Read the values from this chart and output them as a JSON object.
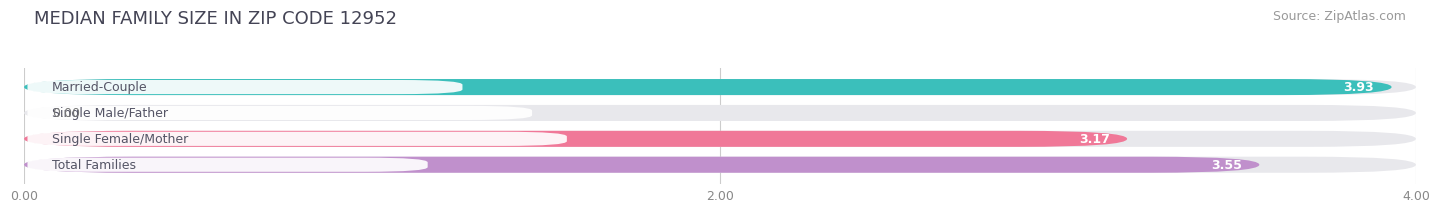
{
  "title": "MEDIAN FAMILY SIZE IN ZIP CODE 12952",
  "source": "Source: ZipAtlas.com",
  "categories": [
    "Married-Couple",
    "Single Male/Father",
    "Single Female/Mother",
    "Total Families"
  ],
  "values": [
    3.93,
    0.0,
    3.17,
    3.55
  ],
  "bar_colors": [
    "#3BBFBB",
    "#AABCE8",
    "#F07898",
    "#C090CC"
  ],
  "xlim": [
    0,
    4.0
  ],
  "xticks": [
    0.0,
    2.0,
    4.0
  ],
  "xtick_labels": [
    "0.00",
    "2.00",
    "4.00"
  ],
  "background_color": "#ffffff",
  "bar_bg_color": "#e8e8ec",
  "title_fontsize": 13,
  "source_fontsize": 9,
  "label_fontsize": 9,
  "value_fontsize": 9,
  "bar_height": 0.62,
  "label_box_color": "#ffffff",
  "label_text_color": "#555566",
  "value_text_color": "#ffffff"
}
